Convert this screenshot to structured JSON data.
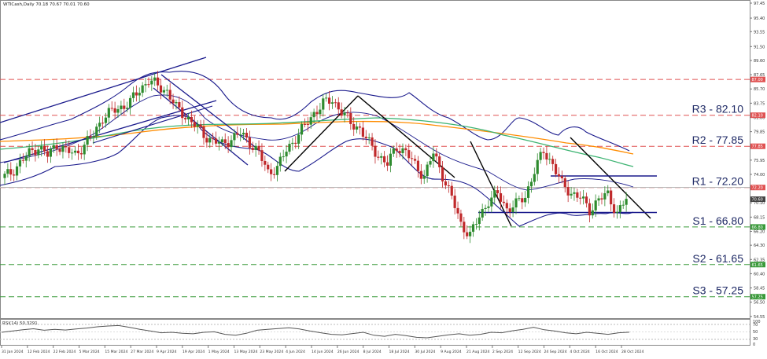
{
  "header": {
    "symbol_line": "WTICash,Daily  70.18 70.67 70.01 70.60"
  },
  "rsi_panel": {
    "label": "RSI(14) 50.3291",
    "ticks": [
      "100",
      "70",
      "50",
      "30",
      "0"
    ]
  },
  "colors": {
    "resistance": "#e05252",
    "support": "#3a9a3a",
    "bullish": "#2e8b2e",
    "bearish": "#c0292b",
    "bollinger": "#1a1a8c",
    "ma_fast": "#3cb371",
    "ma_slow": "#ff8c00",
    "trendline": "#000000",
    "channel": "#1a1a8c",
    "rsi_line": "#555555"
  },
  "chart_data": {
    "type": "candlestick",
    "ylim": [
      54.85,
      97.45
    ],
    "price_ticks": [
      97.45,
      95.4,
      93.55,
      91.5,
      89.6,
      87.65,
      85.7,
      83.75,
      81.8,
      79.85,
      77.85,
      75.95,
      74.0,
      72.05,
      70.1,
      68.15,
      66.2,
      64.3,
      62.35,
      60.4,
      58.45,
      56.5,
      54.55
    ],
    "x_labels": [
      "31 Jan 2024",
      "12 Feb 2024",
      "22 Feb 2024",
      "5 Mar 2024",
      "15 Mar 2024",
      "27 Mar 2024",
      "9 Apr 2024",
      "19 Apr 2024",
      "1 May 2024",
      "13 May 2024",
      "23 May 2024",
      "4 Jun 2024",
      "14 Jun 2024",
      "26 Jun 2024",
      "8 Jul 2024",
      "18 Jul 2024",
      "30 Jul 2024",
      "9 Aug 2024",
      "21 Aug 2024",
      "2 Sep 2024",
      "12 Sep 2024",
      "24 Sep 2024",
      "4 Oct 2024",
      "16 Oct 2024",
      "28 Oct 2024"
    ],
    "levels": [
      {
        "name": "R3",
        "label": "R3 - 82.10",
        "value": 82.1,
        "kind": "resistance",
        "badge": "82.10"
      },
      {
        "name": "R2",
        "label": "R2 - 77.85",
        "value": 77.85,
        "kind": "resistance",
        "badge": "77.85"
      },
      {
        "name": "R1",
        "label": "R1 - 72.20",
        "value": 72.2,
        "kind": "resistance",
        "badge": "72.20"
      },
      {
        "name": "S1",
        "label": "S1 - 66.80",
        "value": 66.8,
        "kind": "support",
        "badge": "66.80"
      },
      {
        "name": "S2",
        "label": "S2 - 61.65",
        "value": 61.65,
        "kind": "support",
        "badge": "61.65"
      },
      {
        "name": "S3",
        "label": "S3 - 57.25",
        "value": 57.25,
        "kind": "support",
        "badge": "57.25"
      }
    ],
    "top_badge": "87.00",
    "current_price": 70.6,
    "current_badge": "70.60",
    "price_path": [
      73.5,
      74.2,
      75.6,
      76.9,
      77.8,
      76.6,
      78.1,
      77.2,
      76.8,
      78.0,
      79.5,
      81.8,
      82.6,
      83.2,
      83.9,
      85.6,
      86.9,
      86.1,
      85.4,
      83.1,
      82.0,
      80.8,
      79.4,
      78.6,
      78.1,
      78.9,
      79.6,
      78.4,
      76.9,
      74.3,
      74.9,
      77.3,
      79.0,
      80.6,
      82.4,
      83.7,
      84.2,
      82.6,
      81.0,
      80.3,
      78.2,
      76.6,
      75.4,
      77.8,
      77.1,
      75.2,
      73.8,
      76.9,
      73.9,
      70.8,
      67.2,
      65.7,
      68.2,
      70.4,
      71.3,
      69.3,
      69.9,
      71.0,
      74.5,
      77.2,
      75.4,
      72.6,
      71.5,
      70.8,
      69.1,
      70.6,
      71.2,
      68.7,
      70.6
    ],
    "rsi_values": [
      50,
      55,
      60,
      64,
      58,
      62,
      59,
      63,
      67,
      72,
      75,
      77,
      70,
      62,
      55,
      48,
      50,
      46,
      44,
      50,
      52,
      42,
      38,
      46,
      58,
      62,
      65,
      68,
      63,
      55,
      48,
      42,
      40,
      45,
      50,
      38,
      34,
      42,
      37,
      30,
      28,
      34,
      40,
      44,
      38,
      42,
      50,
      48,
      56,
      62,
      70,
      60,
      55,
      48,
      44,
      50,
      46,
      42,
      48,
      50.33
    ]
  }
}
